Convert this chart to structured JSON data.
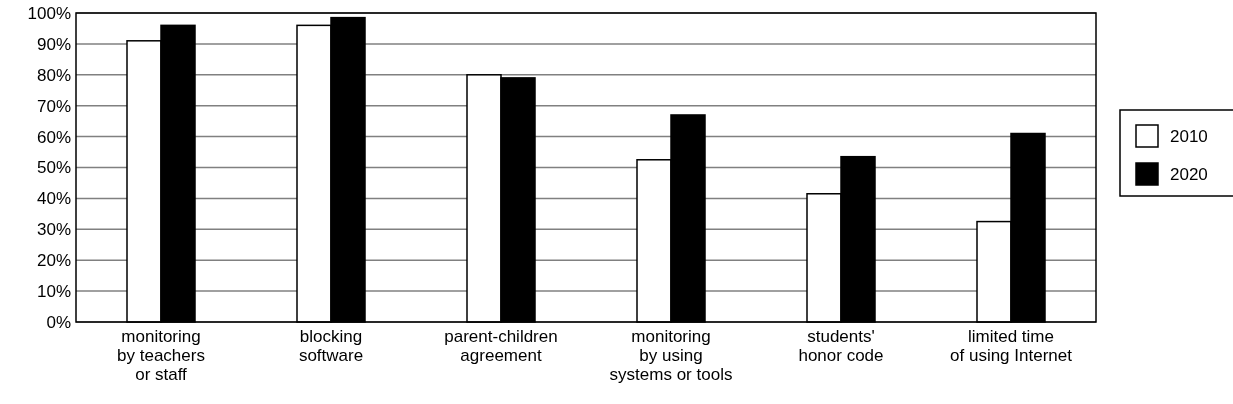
{
  "chart_data": {
    "type": "bar",
    "categories": [
      "monitoring\nby teachers\nor staff",
      "blocking\nsoftware",
      "parent-children\nagreement",
      "monitoring\nby using\nsystems or tools",
      "students'\nhonor code",
      "limited time\nof using Internet"
    ],
    "series": [
      {
        "name": "2010",
        "color": "#ffffff",
        "values": [
          91,
          96,
          80,
          52.5,
          41.5,
          32.5
        ]
      },
      {
        "name": "2020",
        "color": "#000000",
        "values": [
          96,
          98.5,
          79,
          67,
          53.5,
          61
        ]
      }
    ],
    "ylim": [
      0,
      100
    ],
    "yticks": [
      {
        "value": 0,
        "label": "0%"
      },
      {
        "value": 10,
        "label": "10%"
      },
      {
        "value": 20,
        "label": "20%"
      },
      {
        "value": 30,
        "label": "30%"
      },
      {
        "value": 40,
        "label": "40%"
      },
      {
        "value": 50,
        "label": "50%"
      },
      {
        "value": 60,
        "label": "60%"
      },
      {
        "value": 70,
        "label": "70%"
      },
      {
        "value": 80,
        "label": "80%"
      },
      {
        "value": 90,
        "label": "90%"
      },
      {
        "value": 100,
        "label": "100%"
      }
    ],
    "grid": "y",
    "legend": "right"
  }
}
